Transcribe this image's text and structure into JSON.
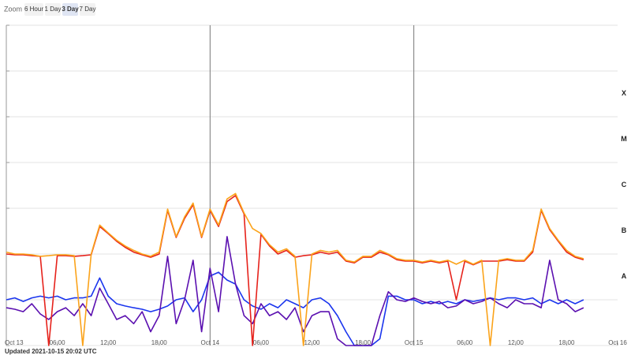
{
  "zoom": {
    "label": "Zoom",
    "options": [
      "6 Hour",
      "1 Day",
      "3 Day",
      "7 Day"
    ],
    "selected": 2
  },
  "updated": "Updated 2021-10-15 20:02 UTC",
  "chart_data": {
    "type": "line",
    "ylog": true,
    "ylim": [
      1e-09,
      0.01
    ],
    "ygrid": [
      1e-09,
      1e-08,
      1e-07,
      1e-06,
      1e-05,
      0.0001,
      0.001,
      0.01
    ],
    "y2lim": [
      1e-09,
      0.01
    ],
    "y2ticks": [
      {
        "value": 3.2e-08,
        "label": "A"
      },
      {
        "value": 3.2e-07,
        "label": "B"
      },
      {
        "value": 3.2e-06,
        "label": "C"
      },
      {
        "value": 3.2e-05,
        "label": "M"
      },
      {
        "value": 0.00032,
        "label": "X"
      }
    ],
    "xlim": [
      0,
      72
    ],
    "xticks": [
      {
        "value": 0,
        "label": "Oct 13"
      },
      {
        "value": 6,
        "label": "06:00"
      },
      {
        "value": 12,
        "label": "12:00"
      },
      {
        "value": 18,
        "label": "18:00"
      },
      {
        "value": 24,
        "label": "Oct 14"
      },
      {
        "value": 30,
        "label": "06:00"
      },
      {
        "value": 36,
        "label": "12:00"
      },
      {
        "value": 42,
        "label": "18:00"
      },
      {
        "value": 48,
        "label": "Oct 15"
      },
      {
        "value": 54,
        "label": "06:00"
      },
      {
        "value": 60,
        "label": "12:00"
      },
      {
        "value": 66,
        "label": "18:00"
      },
      {
        "value": 72,
        "label": "Oct 16"
      }
    ],
    "vlines": [
      24,
      48
    ],
    "x": [
      0,
      1,
      2,
      3,
      4,
      5,
      6,
      7,
      8,
      9,
      10,
      11,
      12,
      13,
      14,
      15,
      16,
      17,
      18,
      19,
      20,
      21,
      22,
      23,
      24,
      25,
      26,
      27,
      28,
      29,
      30,
      31,
      32,
      33,
      34,
      35,
      36,
      37,
      38,
      39,
      40,
      41,
      42,
      43,
      44,
      45,
      46,
      47,
      48,
      49,
      50,
      51,
      52,
      53,
      54,
      55,
      56,
      57,
      58,
      59,
      60,
      61,
      62,
      63,
      64,
      65,
      66,
      67,
      68
    ],
    "series": [
      {
        "color": "#1a35ee",
        "values": [
          1e-08,
          1.1e-08,
          9.2e-09,
          1.1e-08,
          1.2e-08,
          1.1e-08,
          1.2e-08,
          1e-08,
          1.1e-08,
          1.1e-08,
          1.2e-08,
          3e-08,
          1.2e-08,
          8.2e-09,
          7.3e-09,
          6.7e-09,
          6.2e-09,
          5.5e-09,
          6.2e-09,
          7.3e-09,
          1e-08,
          1.1e-08,
          5.5e-09,
          1e-08,
          3.3e-08,
          4e-08,
          2.7e-08,
          2.2e-08,
          1e-08,
          7.3e-09,
          6.2e-09,
          8.2e-09,
          6.7e-09,
          1e-08,
          8.2e-09,
          6.7e-09,
          1e-08,
          1.1e-08,
          8.2e-09,
          4.5e-09,
          2e-09,
          1e-09,
          1e-09,
          1e-09,
          1.4e-09,
          1.2e-08,
          1.2e-08,
          1e-08,
          1e-08,
          8.2e-09,
          9.2e-09,
          8.2e-09,
          9.2e-09,
          8.2e-09,
          1e-08,
          9.2e-09,
          1e-08,
          1.1e-08,
          1e-08,
          1.1e-08,
          1.1e-08,
          1e-08,
          1.1e-08,
          8.2e-09,
          1e-08,
          8.2e-09,
          1e-08,
          8.2e-09,
          1e-08
        ]
      },
      {
        "color": "#5b10b0",
        "values": [
          6.7e-09,
          6.2e-09,
          5.5e-09,
          8.2e-09,
          4.9e-09,
          3.7e-09,
          5.5e-09,
          6.7e-09,
          4.5e-09,
          8.2e-09,
          4.5e-09,
          1.8e-08,
          8.2e-09,
          3.7e-09,
          4.5e-09,
          3e-09,
          5.5e-09,
          2e-09,
          4.5e-09,
          8.9e-08,
          3e-09,
          1e-08,
          7.3e-08,
          2e-09,
          4.9e-08,
          5.5e-09,
          2.4e-07,
          2.2e-08,
          4.5e-09,
          3e-09,
          8.2e-09,
          4.5e-09,
          5.5e-09,
          3.7e-09,
          6.7e-09,
          2e-09,
          4.5e-09,
          5.5e-09,
          5.5e-09,
          1.4e-09,
          1e-09,
          1e-09,
          1e-09,
          1e-09,
          4.5e-09,
          1.5e-08,
          1e-08,
          9.2e-09,
          1.1e-08,
          9.2e-09,
          8.2e-09,
          9.2e-09,
          6.7e-09,
          7.3e-09,
          1e-08,
          8.2e-09,
          9.2e-09,
          1.1e-08,
          8.2e-09,
          6.7e-09,
          1e-08,
          8.2e-09,
          8.2e-09,
          6.7e-09,
          7.3e-08,
          1e-08,
          8.2e-09,
          5.5e-09,
          6.7e-09
        ]
      },
      {
        "color": "#e6221b",
        "values": [
          1e-07,
          9.6e-08,
          9.6e-08,
          9.2e-08,
          8.9e-08,
          1e-09,
          9.2e-08,
          9.2e-08,
          8.9e-08,
          9.2e-08,
          9.6e-08,
          4e-07,
          2.8e-07,
          1.9e-07,
          1.4e-07,
          1.1e-07,
          9.6e-08,
          8.5e-08,
          1e-07,
          9e-07,
          2.3e-07,
          6e-07,
          1.2e-06,
          2.3e-07,
          9e-07,
          4e-07,
          1.4e-06,
          1.9e-06,
          7.5e-07,
          1e-09,
          2.7e-07,
          1.5e-07,
          1e-07,
          1.2e-07,
          8.5e-08,
          9.2e-08,
          9.6e-08,
          1.1e-07,
          1e-07,
          1.1e-07,
          7e-08,
          6.4e-08,
          8.5e-08,
          8.5e-08,
          1.1e-07,
          9.6e-08,
          7.5e-08,
          7e-08,
          7e-08,
          6.4e-08,
          7e-08,
          6.4e-08,
          7e-08,
          1e-08,
          7e-08,
          5.8e-08,
          7e-08,
          7e-08,
          7e-08,
          7.5e-08,
          7e-08,
          7e-08,
          1.1e-07,
          9e-07,
          3.4e-07,
          1.9e-07,
          1.1e-07,
          8.5e-08,
          7.5e-08
        ]
      },
      {
        "color": "#fba31a",
        "values": [
          1.1e-07,
          1e-07,
          1e-07,
          9.6e-08,
          8.9e-08,
          9.2e-08,
          9.6e-08,
          9.6e-08,
          9.2e-08,
          1e-09,
          1e-07,
          4.3e-07,
          2.9e-07,
          2e-07,
          1.5e-07,
          1.2e-07,
          1e-07,
          8.9e-08,
          1.1e-07,
          9.6e-07,
          2.4e-07,
          6.5e-07,
          1.3e-06,
          2.4e-07,
          9.6e-07,
          4.3e-07,
          1.6e-06,
          2.1e-06,
          7.9e-07,
          3.6e-07,
          2.8e-07,
          1.6e-07,
          1.1e-07,
          1.3e-07,
          8.9e-08,
          1e-09,
          1e-07,
          1.2e-07,
          1.1e-07,
          1.2e-07,
          7.3e-08,
          6.7e-08,
          8.9e-08,
          8.9e-08,
          1.2e-07,
          1e-07,
          7.9e-08,
          7.3e-08,
          7.3e-08,
          6.7e-08,
          7.3e-08,
          6.7e-08,
          7.3e-08,
          6e-08,
          7.3e-08,
          6e-08,
          7.3e-08,
          1e-09,
          7.3e-08,
          7.9e-08,
          7.3e-08,
          7.3e-08,
          1.2e-07,
          9.6e-07,
          3.6e-07,
          2e-07,
          1.2e-07,
          8.9e-08,
          7.9e-08
        ]
      }
    ]
  }
}
